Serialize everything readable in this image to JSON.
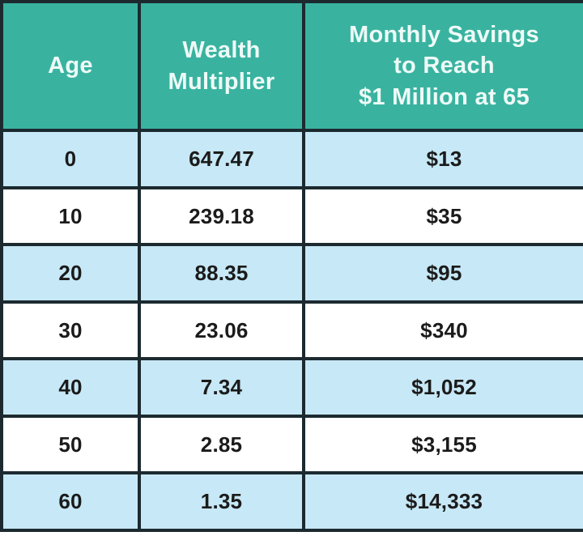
{
  "chart_data": {
    "type": "table",
    "title": "",
    "columns": [
      "Age",
      "Wealth Multiplier",
      "Monthly Savings to Reach $1 Million at 65"
    ],
    "rows": [
      [
        "0",
        "647.47",
        "$13"
      ],
      [
        "10",
        "239.18",
        "$35"
      ],
      [
        "20",
        "88.35",
        "$95"
      ],
      [
        "30",
        "23.06",
        "$340"
      ],
      [
        "40",
        "7.34",
        "$1,052"
      ],
      [
        "50",
        "2.85",
        "$3,155"
      ],
      [
        "60",
        "1.35",
        "$14,333"
      ]
    ]
  },
  "header_display": {
    "age": "Age",
    "wealth_multiplier": "Wealth\nMultiplier",
    "monthly_savings": "Monthly Savings\nto Reach\n$1 Million at 65"
  },
  "colors": {
    "header_bg": "#39b3a0",
    "header_text": "#eefaf7",
    "row_alt_bg": "#c7e8f6",
    "row_plain_bg": "#ffffff",
    "border": "#1c2a30",
    "data_text": "#1b1b1b"
  }
}
